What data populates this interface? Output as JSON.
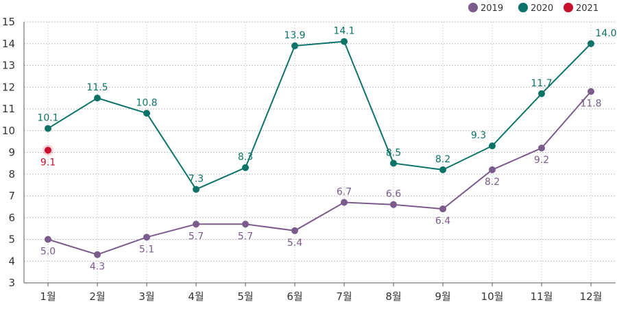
{
  "chart_data": {
    "type": "line",
    "title": "",
    "xlabel": "",
    "ylabel": "",
    "categories": [
      "1월",
      "2월",
      "3월",
      "4월",
      "5월",
      "6월",
      "7월",
      "8월",
      "9월",
      "10월",
      "11월",
      "12월"
    ],
    "ylim": [
      3,
      15
    ],
    "yticks": [
      3,
      4,
      5,
      6,
      7,
      8,
      9,
      10,
      11,
      12,
      13,
      14,
      15
    ],
    "grid": "horizontal-dashed",
    "legend": "top-right",
    "series": [
      {
        "name": "2019",
        "color": "#7b5a8c",
        "values": [
          5.0,
          4.3,
          5.1,
          5.7,
          5.7,
          5.4,
          6.7,
          6.6,
          6.4,
          8.2,
          9.2,
          11.8
        ],
        "labels": [
          "5.0",
          "4.3",
          "5.1",
          "5.7",
          "5.7",
          "5.4",
          "6.7",
          "6.6",
          "6.4",
          "8.2",
          "9.2",
          "11.8"
        ],
        "label_pos": [
          "below",
          "below",
          "below",
          "below",
          "below",
          "below",
          "above",
          "above",
          "below",
          "below",
          "below",
          "below"
        ]
      },
      {
        "name": "2020",
        "color": "#0b7368",
        "values": [
          10.1,
          11.5,
          10.8,
          7.3,
          8.3,
          13.9,
          14.1,
          8.5,
          8.2,
          9.3,
          11.7,
          14.0
        ],
        "labels": [
          "10.1",
          "11.5",
          "10.8",
          "7.3",
          "8.3",
          "13.9",
          "14.1",
          "8.5",
          "8.2",
          "9.3",
          "11.7",
          "14.0"
        ],
        "label_pos": [
          "above",
          "above",
          "above",
          "above",
          "above",
          "above",
          "above",
          "above",
          "above",
          "above-left",
          "above",
          "above-right"
        ]
      },
      {
        "name": "2021",
        "color": "#c8102e",
        "values": [
          9.1,
          null,
          null,
          null,
          null,
          null,
          null,
          null,
          null,
          null,
          null,
          null
        ],
        "labels": [
          "9.1"
        ],
        "label_pos": [
          "below"
        ]
      }
    ]
  }
}
